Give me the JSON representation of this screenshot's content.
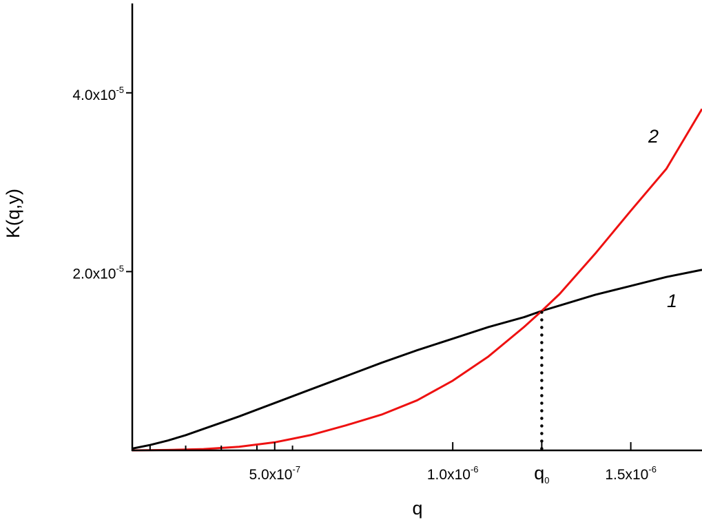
{
  "chart_data": {
    "type": "line",
    "title": "",
    "xlabel": "q",
    "ylabel": "K(q,y)",
    "xlim": [
      1e-07,
      1.7e-06
    ],
    "ylim": [
      0,
      5e-05
    ],
    "grid": false,
    "x_ticks": [
      {
        "value": 5e-07,
        "mantissa": "5.0x10",
        "exponent": "-7"
      },
      {
        "value": 1e-06,
        "mantissa": "1.0x10",
        "exponent": "-6"
      },
      {
        "value": 1.5e-06,
        "mantissa": "1.5x10",
        "exponent": "-6"
      }
    ],
    "x_minor_ticks": [
      1.5e-07,
      2.5e-07,
      3.5e-07,
      4.5e-07,
      5.5e-07
    ],
    "y_ticks": [
      {
        "value": 2e-05,
        "mantissa": "2.0x10",
        "exponent": "-5"
      },
      {
        "value": 4e-05,
        "mantissa": "4.0x10",
        "exponent": "-5"
      }
    ],
    "marker": {
      "x": 1.25e-06,
      "y": 1.56e-05,
      "label": "q",
      "subscript": "0",
      "style": "dotted"
    },
    "series": [
      {
        "label": "1",
        "color": "#000000",
        "x": [
          1e-07,
          1.5e-07,
          2e-07,
          2.5e-07,
          3e-07,
          3.5e-07,
          4e-07,
          5e-07,
          6e-07,
          7e-07,
          8e-07,
          9e-07,
          1e-06,
          1.1e-06,
          1.2e-06,
          1.25e-06,
          1.3e-06,
          1.4e-06,
          1.5e-06,
          1.6e-06,
          1.7e-06
        ],
        "y": [
          2e-07,
          6e-07,
          1.1e-06,
          1.7e-06,
          2.4e-06,
          3.1e-06,
          3.8e-06,
          5.3e-06,
          6.8e-06,
          8.3e-06,
          9.8e-06,
          1.12e-05,
          1.25e-05,
          1.38e-05,
          1.49e-05,
          1.56e-05,
          1.62e-05,
          1.74e-05,
          1.84e-05,
          1.94e-05,
          2.02e-05
        ]
      },
      {
        "label": "2",
        "color": "#ee1111",
        "x": [
          1e-07,
          2e-07,
          3e-07,
          4e-07,
          5e-07,
          5.5e-07,
          6e-07,
          7e-07,
          8e-07,
          9e-07,
          1e-06,
          1.1e-06,
          1.2e-06,
          1.25e-06,
          1.3e-06,
          1.4e-06,
          1.5e-06,
          1.6e-06,
          1.7e-06
        ],
        "y": [
          0.0,
          5e-08,
          1.5e-07,
          4e-07,
          9e-07,
          1.3e-06,
          1.7e-06,
          2.8e-06,
          4e-06,
          5.6e-06,
          7.8e-06,
          1.05e-05,
          1.38e-05,
          1.56e-05,
          1.75e-05,
          2.2e-05,
          2.68e-05,
          3.15e-05,
          3.82e-05
        ]
      }
    ]
  }
}
